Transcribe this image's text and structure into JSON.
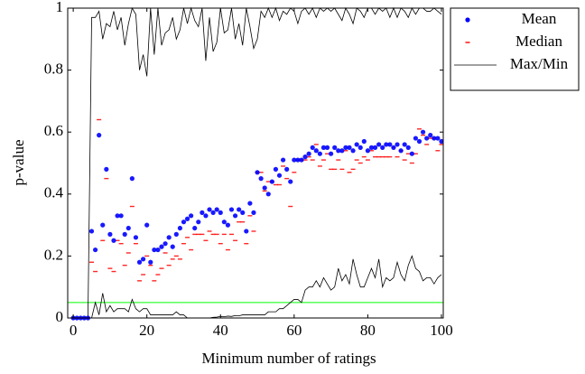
{
  "chart_data": {
    "type": "scatter_line",
    "x_label": "Minimum number of ratings",
    "y_label": "p-value",
    "xlim": [
      -1.5,
      100.5
    ],
    "ylim": [
      0,
      1
    ],
    "xticks": [
      0,
      20,
      40,
      60,
      80,
      100
    ],
    "yticks": [
      0,
      0.2,
      0.4,
      0.6,
      0.8,
      1
    ],
    "legend": "outside-top-right",
    "reference_line": {
      "value": 0.05,
      "color": "#00ff00"
    },
    "x": [
      0,
      1,
      2,
      3,
      4,
      5,
      6,
      7,
      8,
      9,
      10,
      11,
      12,
      13,
      14,
      15,
      16,
      17,
      18,
      19,
      20,
      21,
      22,
      23,
      24,
      25,
      26,
      27,
      28,
      29,
      30,
      31,
      32,
      33,
      34,
      35,
      36,
      37,
      38,
      39,
      40,
      41,
      42,
      43,
      44,
      45,
      46,
      47,
      48,
      49,
      50,
      51,
      52,
      53,
      54,
      55,
      56,
      57,
      58,
      59,
      60,
      61,
      62,
      63,
      64,
      65,
      66,
      67,
      68,
      69,
      70,
      71,
      72,
      73,
      74,
      75,
      76,
      77,
      78,
      79,
      80,
      81,
      82,
      83,
      84,
      85,
      86,
      87,
      88,
      89,
      90,
      91,
      92,
      93,
      94,
      95,
      96,
      97,
      98,
      99,
      100
    ],
    "series": [
      {
        "name": "Mean",
        "color": "#0000ff",
        "marker": "dot",
        "values": [
          0,
          0,
          0,
          0,
          0,
          0.28,
          0.22,
          0.59,
          0.3,
          0.48,
          0.27,
          0.25,
          0.33,
          0.33,
          0.27,
          0.29,
          0.45,
          0.26,
          0.18,
          0.19,
          0.3,
          0.18,
          0.22,
          0.22,
          0.23,
          0.24,
          0.26,
          0.23,
          0.27,
          0.29,
          0.31,
          0.32,
          0.33,
          0.29,
          0.31,
          0.34,
          0.33,
          0.35,
          0.34,
          0.35,
          0.34,
          0.31,
          0.3,
          0.35,
          0.33,
          0.35,
          0.34,
          0.28,
          0.37,
          0.34,
          0.47,
          0.45,
          0.42,
          0.4,
          0.44,
          0.48,
          0.46,
          0.51,
          0.48,
          0.44,
          0.51,
          0.51,
          0.51,
          0.52,
          0.53,
          0.55,
          0.54,
          0.53,
          0.55,
          0.55,
          0.53,
          0.55,
          0.54,
          0.54,
          0.55,
          0.55,
          0.54,
          0.56,
          0.55,
          0.57,
          0.54,
          0.55,
          0.55,
          0.56,
          0.55,
          0.56,
          0.56,
          0.55,
          0.56,
          0.54,
          0.56,
          0.55,
          0.53,
          0.58,
          0.57,
          0.6,
          0.58,
          0.59,
          0.58,
          0.58,
          0.57
        ]
      },
      {
        "name": "Median",
        "color": "#ff0000",
        "marker": "dash",
        "values": [
          0,
          0,
          0,
          0,
          0,
          0.18,
          0.15,
          0.64,
          0.25,
          0.45,
          0.16,
          0.15,
          0.25,
          0.24,
          0.17,
          0.21,
          0.36,
          0.24,
          0.12,
          0.14,
          0.2,
          0.17,
          0.12,
          0.14,
          0.16,
          0.21,
          0.17,
          0.19,
          0.2,
          0.19,
          0.24,
          0.26,
          0.22,
          0.27,
          0.27,
          0.27,
          0.25,
          0.28,
          0.27,
          0.27,
          0.24,
          0.27,
          0.22,
          0.27,
          0.25,
          0.31,
          0.31,
          0.24,
          0.33,
          0.28,
          0.47,
          0.47,
          0.41,
          0.44,
          0.44,
          0.43,
          0.43,
          0.49,
          0.45,
          0.36,
          0.47,
          0.51,
          0.51,
          0.51,
          0.52,
          0.51,
          0.56,
          0.49,
          0.51,
          0.53,
          0.48,
          0.48,
          0.51,
          0.48,
          0.54,
          0.47,
          0.48,
          0.51,
          0.5,
          0.52,
          0.51,
          0.54,
          0.52,
          0.52,
          0.52,
          0.52,
          0.52,
          0.55,
          0.52,
          0.54,
          0.51,
          0.53,
          0.5,
          0.53,
          0.61,
          0.59,
          0.56,
          0.58,
          0.58,
          0.54,
          0.56
        ]
      },
      {
        "name": "Max/Min",
        "color": "#000000",
        "marker": "line",
        "values": [
          0,
          0,
          0,
          0,
          0,
          0.97,
          0.97,
          0.99,
          0.9,
          0.95,
          0.94,
          0.99,
          0.93,
          0.97,
          0.88,
          0.95,
          1,
          0.98,
          0.8,
          0.85,
          0.78,
          1,
          0.85,
          1,
          0.88,
          0.92,
          0.93,
          0.97,
          0.9,
          0.93,
          1,
          0.95,
          1,
          0.96,
          0.94,
          1,
          0.83,
          0.97,
          0.86,
          0.89,
          1,
          0.92,
          0.93,
          1,
          0.9,
          0.95,
          0.88,
          1,
          0.94,
          0.87,
          0.9,
          0.99,
          0.97,
          1,
          0.97,
          1,
          0.96,
          0.99,
          0.98,
          1,
          0.99,
          0.95,
          0.99,
          1,
          0.98,
          1,
          0.97,
          1,
          0.99,
          1,
          0.99,
          1,
          0.98,
          0.96,
          1,
          0.98,
          0.95,
          1,
          0.99,
          0.97,
          1,
          1,
          0.98,
          1,
          0.99,
          1,
          0.97,
          1,
          0.97,
          1,
          0.99,
          0.97,
          1,
          0.98,
          1,
          1,
          0.99,
          0.99,
          1,
          0.99,
          0.98
        ],
        "lower_values": [
          0,
          0,
          0,
          0,
          0,
          0,
          0.05,
          0.01,
          0.08,
          0.02,
          0.04,
          0.02,
          0.03,
          0.03,
          0.03,
          0.02,
          0.06,
          0.03,
          0.02,
          0.03,
          0.03,
          0.01,
          0.01,
          0.01,
          0.01,
          0.01,
          0.01,
          0.01,
          0.02,
          0.01,
          0.01,
          0,
          0,
          0,
          0,
          0,
          0,
          0,
          0.002,
          0.003,
          0.005,
          0.004,
          0.006,
          0.005,
          0.008,
          0.007,
          0.01,
          0.01,
          0.01,
          0.01,
          0.01,
          0.01,
          0.01,
          0.02,
          0.02,
          0.02,
          0.03,
          0.03,
          0.04,
          0.05,
          0.06,
          0.06,
          0.05,
          0.09,
          0.1,
          0.1,
          0.12,
          0.1,
          0.13,
          0.11,
          0.09,
          0.1,
          0.16,
          0.12,
          0.14,
          0.11,
          0.19,
          0.14,
          0.1,
          0.1,
          0.13,
          0.16,
          0.13,
          0.19,
          0.1,
          0.13,
          0.12,
          0.13,
          0.18,
          0.14,
          0.12,
          0.17,
          0.2,
          0.16,
          0.15,
          0.12,
          0.13,
          0.13,
          0.11,
          0.13,
          0.14
        ]
      }
    ]
  }
}
